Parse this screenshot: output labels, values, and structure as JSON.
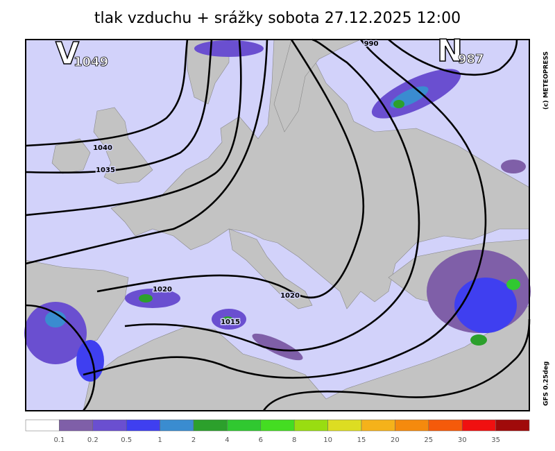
{
  "title": "tlak vzduchu + srážky  sobota 27.12.2025 12:00",
  "highs": [
    {
      "letter": "V",
      "value": 1049
    }
  ],
  "lows": [
    {
      "letter": "N",
      "value": 987
    }
  ],
  "isobar_labels": [
    1040,
    1035,
    1020,
    1020,
    1015,
    990
  ],
  "copyright": "(c) METEOPRESS",
  "model": "GFS 0.25deg",
  "legend": {
    "colors": [
      "#ffffff",
      "#7f5fa8",
      "#6a4fd0",
      "#3f3ff0",
      "#3a8cd0",
      "#2ca02c",
      "#30c830",
      "#44dd22",
      "#99dd11",
      "#dddd22",
      "#f5b21a",
      "#f58a0d",
      "#f55a0a",
      "#f01010",
      "#a00a0a"
    ],
    "labels": [
      0.1,
      0.2,
      0.5,
      1,
      2,
      4,
      6,
      8,
      10,
      15,
      20,
      25,
      30,
      35
    ]
  }
}
